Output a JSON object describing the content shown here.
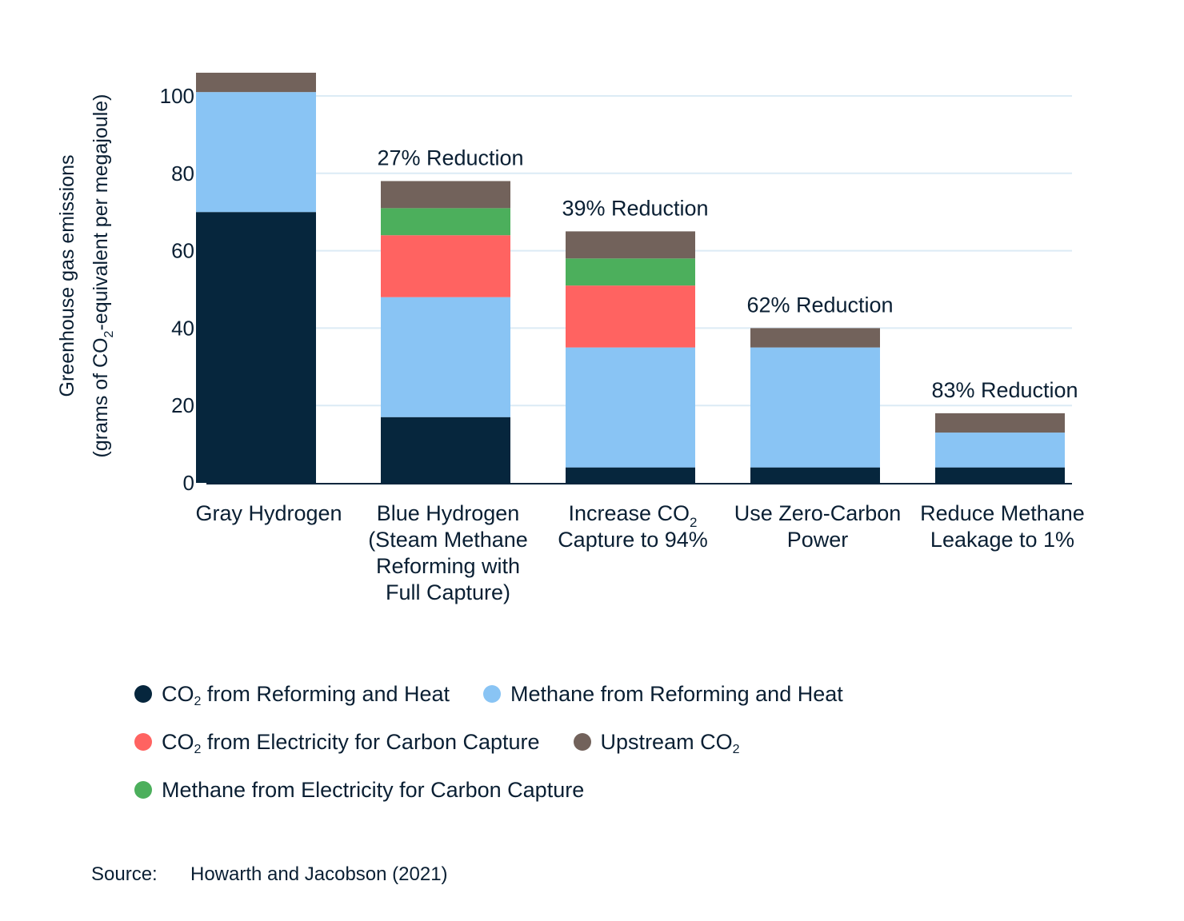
{
  "chart_data": {
    "type": "bar",
    "stacked": true,
    "ylabel": "Greenhouse gas emissions",
    "ylabel_line2_prefix": "(grams of CO",
    "ylabel_line2_sub": "2",
    "ylabel_line2_suffix": "-equivalent per megajoule)",
    "ylim": [
      0,
      100
    ],
    "yticks": [
      0,
      20,
      40,
      60,
      80,
      100
    ],
    "grid": true,
    "legend_position": "bottom",
    "categories": [
      {
        "lines": [
          "Gray Hydrogen"
        ]
      },
      {
        "lines": [
          "Blue Hydrogen",
          "(Steam Methane",
          "Reforming with",
          "Full Capture)"
        ]
      },
      {
        "lines": [
          "Increase CO|2",
          "Capture to 94%"
        ]
      },
      {
        "lines": [
          "Use Zero-Carbon",
          "Power"
        ]
      },
      {
        "lines": [
          "Reduce Methane",
          "Leakage to 1%"
        ]
      }
    ],
    "annotations": [
      "",
      "27% Reduction",
      "39% Reduction",
      "62% Reduction",
      "83% Reduction"
    ],
    "series": [
      {
        "key": "co2_reform",
        "color": "#06263d",
        "values": [
          70,
          17,
          4,
          4,
          4
        ]
      },
      {
        "key": "ch4_reform",
        "color": "#89c4f4",
        "values": [
          31,
          31,
          31,
          31,
          9
        ]
      },
      {
        "key": "co2_elec",
        "color": "#ff6361",
        "values": [
          0,
          16,
          16,
          0,
          0
        ]
      },
      {
        "key": "ch4_elec",
        "color": "#4caf5c",
        "values": [
          0,
          7,
          7,
          0,
          0
        ]
      },
      {
        "key": "upstream",
        "color": "#72625b",
        "values": [
          5,
          7,
          7,
          5,
          5
        ]
      }
    ],
    "legend": [
      {
        "key": "co2_reform",
        "text_prefix": "CO",
        "text_sub": "2",
        "text_suffix": " from Reforming and Heat",
        "color": "#06263d"
      },
      {
        "key": "ch4_reform",
        "text_prefix": "Methane from Reforming and Heat",
        "text_sub": "",
        "text_suffix": "",
        "color": "#89c4f4"
      },
      {
        "key": "co2_elec",
        "text_prefix": "CO",
        "text_sub": "2",
        "text_suffix": " from Electricity for Carbon Capture",
        "color": "#ff6361"
      },
      {
        "key": "upstream",
        "text_prefix": "Upstream CO",
        "text_sub": "2",
        "text_suffix": "",
        "color": "#72625b"
      },
      {
        "key": "ch4_elec",
        "text_prefix": "Methane from Electricity for Carbon Capture",
        "text_sub": "",
        "text_suffix": "",
        "color": "#4caf5c"
      }
    ]
  },
  "source": {
    "label": "Source:",
    "text": "Howarth and Jacobson (2021)"
  }
}
